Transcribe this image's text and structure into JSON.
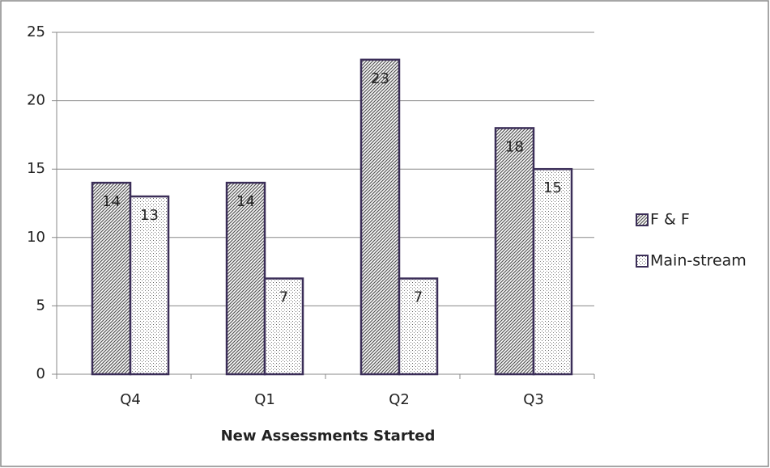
{
  "chart_data": {
    "type": "bar",
    "x_label": "New Assessments Started",
    "categories": [
      "Q4",
      "Q1",
      "Q2",
      "Q3"
    ],
    "series": [
      {
        "name": "F & F",
        "color": "#3b2e58",
        "values": [
          14,
          14,
          23,
          18
        ]
      },
      {
        "name": "Main-stream",
        "color": "#3b2e58",
        "values": [
          13,
          7,
          7,
          15
        ]
      }
    ],
    "ylim": [
      0,
      25
    ],
    "yticks": [
      0,
      5,
      10,
      15,
      20,
      25
    ],
    "grid": true,
    "legend": "right"
  }
}
